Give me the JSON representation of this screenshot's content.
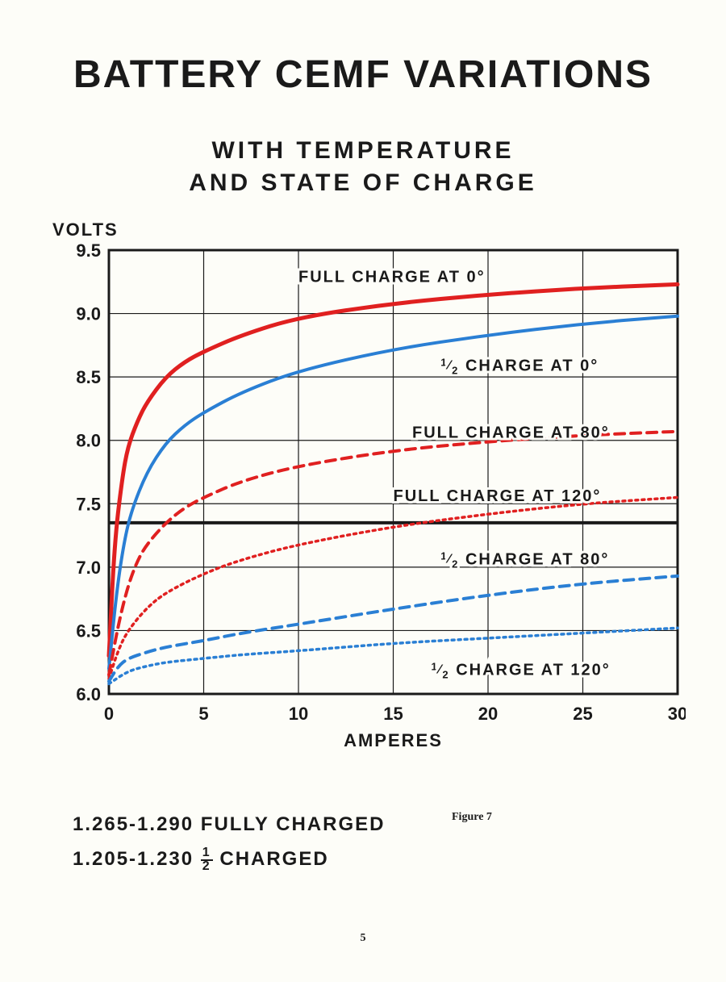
{
  "title": "BATTERY  CEMF  VARIATIONS",
  "subtitle1": "WITH   TEMPERATURE",
  "subtitle2": "AND   STATE   OF   CHARGE",
  "ylabel": "VOLTS",
  "xlabel": "AMPERES",
  "figure_label": "Figure 7",
  "page_number": "5",
  "legend": {
    "line1": "1.265-1.290  FULLY  CHARGED",
    "line2_a": "1.205-1.230  ",
    "line2_b": "  CHARGED"
  },
  "chart": {
    "type": "line",
    "xlim": [
      0,
      30
    ],
    "ylim": [
      6.0,
      9.5
    ],
    "xticks": [
      0,
      5,
      10,
      15,
      20,
      25,
      30
    ],
    "yticks": [
      6.0,
      6.5,
      7.0,
      7.5,
      8.0,
      8.5,
      9.0,
      9.5
    ],
    "xtick_labels": [
      "0",
      "5",
      "10",
      "15",
      "20",
      "25",
      "30"
    ],
    "ytick_labels": [
      "6.0",
      "6.5",
      "7.0",
      "7.5",
      "8.0",
      "8.5",
      "9.0",
      "9.5"
    ],
    "grid_color": "#1a1a1a",
    "grid_width": 1.2,
    "border_width": 3,
    "background_color": "#fdfdf8",
    "tick_fontsize": 22,
    "axis_label_fontsize": 22,
    "reference_line": {
      "y": 7.35,
      "color": "#1a1a1a",
      "width": 4
    },
    "series": [
      {
        "name": "full_0",
        "label": "FULL  CHARGE   AT   0°",
        "label_xy": [
          10,
          9.25
        ],
        "color": "#e02020",
        "width": 5,
        "dash": "none",
        "points": [
          [
            0.0,
            6.3
          ],
          [
            0.3,
            7.2
          ],
          [
            0.7,
            7.7
          ],
          [
            1.0,
            7.95
          ],
          [
            1.5,
            8.15
          ],
          [
            2.0,
            8.3
          ],
          [
            3.0,
            8.5
          ],
          [
            4.0,
            8.62
          ],
          [
            5.0,
            8.7
          ],
          [
            7.0,
            8.83
          ],
          [
            10.0,
            8.97
          ],
          [
            15.0,
            9.08
          ],
          [
            20.0,
            9.15
          ],
          [
            25.0,
            9.2
          ],
          [
            30.0,
            9.23
          ]
        ]
      },
      {
        "name": "half_0",
        "label": "½  CHARGE   AT   0°",
        "label_xy": [
          17.5,
          8.55
        ],
        "color": "#2a7fd4",
        "width": 4,
        "dash": "none",
        "points": [
          [
            0.0,
            6.2
          ],
          [
            0.4,
            6.8
          ],
          [
            0.8,
            7.2
          ],
          [
            1.2,
            7.45
          ],
          [
            2.0,
            7.75
          ],
          [
            3.0,
            7.98
          ],
          [
            4.0,
            8.12
          ],
          [
            5.0,
            8.22
          ],
          [
            7.0,
            8.38
          ],
          [
            10.0,
            8.55
          ],
          [
            15.0,
            8.72
          ],
          [
            20.0,
            8.83
          ],
          [
            25.0,
            8.92
          ],
          [
            30.0,
            8.98
          ]
        ]
      },
      {
        "name": "full_80",
        "label": "FULL   CHARGE   AT  80°",
        "label_xy": [
          16,
          8.02
        ],
        "color": "#e02020",
        "width": 4,
        "dash": "12,8",
        "points": [
          [
            0.0,
            6.15
          ],
          [
            0.5,
            6.55
          ],
          [
            1.0,
            6.85
          ],
          [
            1.5,
            7.05
          ],
          [
            2.0,
            7.18
          ],
          [
            3.0,
            7.35
          ],
          [
            4.0,
            7.47
          ],
          [
            5.0,
            7.55
          ],
          [
            7.0,
            7.68
          ],
          [
            10.0,
            7.8
          ],
          [
            15.0,
            7.92
          ],
          [
            20.0,
            7.99
          ],
          [
            25.0,
            8.04
          ],
          [
            30.0,
            8.07
          ]
        ]
      },
      {
        "name": "full_120",
        "label": "FULL   CHARGE   AT  120°",
        "label_xy": [
          15,
          7.52
        ],
        "color": "#e02020",
        "width": 3.5,
        "dash": "3,5",
        "points": [
          [
            0.0,
            6.12
          ],
          [
            0.5,
            6.35
          ],
          [
            1.0,
            6.5
          ],
          [
            2.0,
            6.68
          ],
          [
            3.0,
            6.8
          ],
          [
            5.0,
            6.95
          ],
          [
            7.0,
            7.06
          ],
          [
            10.0,
            7.18
          ],
          [
            15.0,
            7.32
          ],
          [
            20.0,
            7.42
          ],
          [
            25.0,
            7.5
          ],
          [
            30.0,
            7.55
          ]
        ]
      },
      {
        "name": "half_80",
        "label": "½  CHARGE   AT  80°",
        "label_xy": [
          17.5,
          7.02
        ],
        "color": "#2a7fd4",
        "width": 4,
        "dash": "12,8",
        "points": [
          [
            0.0,
            6.1
          ],
          [
            0.5,
            6.22
          ],
          [
            1.0,
            6.28
          ],
          [
            2.0,
            6.33
          ],
          [
            3.0,
            6.37
          ],
          [
            5.0,
            6.42
          ],
          [
            7.0,
            6.48
          ],
          [
            10.0,
            6.55
          ],
          [
            15.0,
            6.67
          ],
          [
            20.0,
            6.78
          ],
          [
            25.0,
            6.87
          ],
          [
            30.0,
            6.93
          ]
        ]
      },
      {
        "name": "half_120",
        "label": "½  CHARGE   AT  120°",
        "label_xy": [
          17,
          6.15
        ],
        "color": "#2a7fd4",
        "width": 3.5,
        "dash": "3,5",
        "points": [
          [
            0.0,
            6.08
          ],
          [
            1.0,
            6.18
          ],
          [
            2.0,
            6.22
          ],
          [
            3.0,
            6.25
          ],
          [
            5.0,
            6.28
          ],
          [
            7.0,
            6.31
          ],
          [
            10.0,
            6.34
          ],
          [
            15.0,
            6.4
          ],
          [
            20.0,
            6.44
          ],
          [
            25.0,
            6.48
          ],
          [
            30.0,
            6.52
          ]
        ]
      }
    ]
  }
}
